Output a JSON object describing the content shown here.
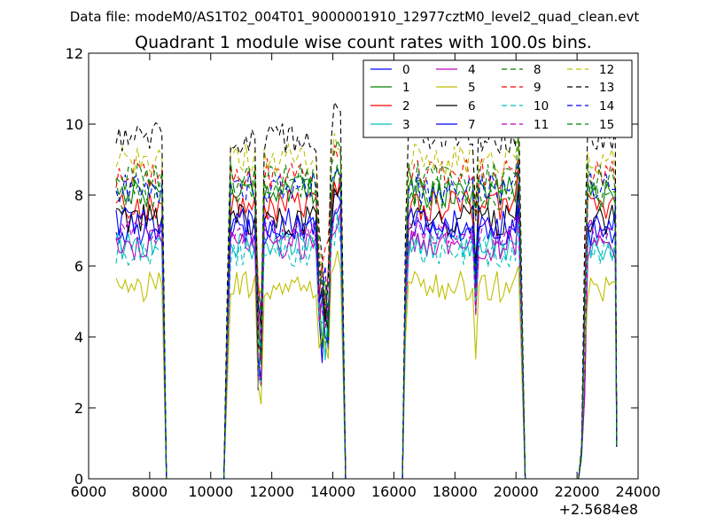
{
  "chart_data": {
    "type": "line",
    "suptitle": "Data file: modeM0/AS1T02_004T01_9000001910_12977cztM0_level2_quad_clean.evt",
    "title": "Quadrant 1 module wise count rates with 100.0s bins.",
    "xlabel": "",
    "ylabel": "",
    "x_offset_label": "+2.5684e8",
    "xlim": [
      6000,
      24000
    ],
    "ylim": [
      0,
      12
    ],
    "xticks": [
      6000,
      8000,
      10000,
      12000,
      14000,
      16000,
      18000,
      20000,
      22000,
      24000
    ],
    "yticks": [
      0,
      2,
      4,
      6,
      8,
      10,
      12
    ],
    "grid": false,
    "legend_position": "top-right",
    "legend_columns": 4,
    "gti_segments": [
      {
        "start": 6900,
        "end": 8400,
        "fall_end": 8550
      },
      {
        "start": 10550,
        "end": 14300,
        "drop_center": 13700,
        "fall_end": 14420
      },
      {
        "start": 16380,
        "end": 20150,
        "fall_end": 20300
      },
      {
        "start": 22150,
        "end": 23300,
        "last_value": 0.9
      }
    ],
    "series": [
      {
        "name": "0",
        "color": "#0000ff",
        "dash": "solid",
        "level": 7.0
      },
      {
        "name": "1",
        "color": "#008000",
        "dash": "solid",
        "level": 8.1
      },
      {
        "name": "2",
        "color": "#ff0000",
        "dash": "solid",
        "level": 7.7
      },
      {
        "name": "3",
        "color": "#00bfbf",
        "dash": "solid",
        "level": 6.6
      },
      {
        "name": "4",
        "color": "#bf00bf",
        "dash": "solid",
        "level": 6.6
      },
      {
        "name": "5",
        "color": "#bfbf00",
        "dash": "solid",
        "level": 5.4
      },
      {
        "name": "6",
        "color": "#000000",
        "dash": "solid",
        "level": 7.3
      },
      {
        "name": "7",
        "color": "#0000ff",
        "dash": "solid",
        "level": 7.2
      },
      {
        "name": "8",
        "color": "#008000",
        "dash": "dashed",
        "level": 8.0
      },
      {
        "name": "9",
        "color": "#ff0000",
        "dash": "dashed",
        "level": 8.6
      },
      {
        "name": "10",
        "color": "#00bfbf",
        "dash": "dashed",
        "level": 6.4
      },
      {
        "name": "11",
        "color": "#bf00bf",
        "dash": "dashed",
        "level": 7.0
      },
      {
        "name": "12",
        "color": "#bfbf00",
        "dash": "dashed",
        "level": 9.0
      },
      {
        "name": "13",
        "color": "#000000",
        "dash": "dashed",
        "level": 9.6
      },
      {
        "name": "14",
        "color": "#0000ff",
        "dash": "dashed",
        "level": 8.2
      },
      {
        "name": "15",
        "color": "#008000",
        "dash": "dashed",
        "level": 8.5
      }
    ]
  }
}
